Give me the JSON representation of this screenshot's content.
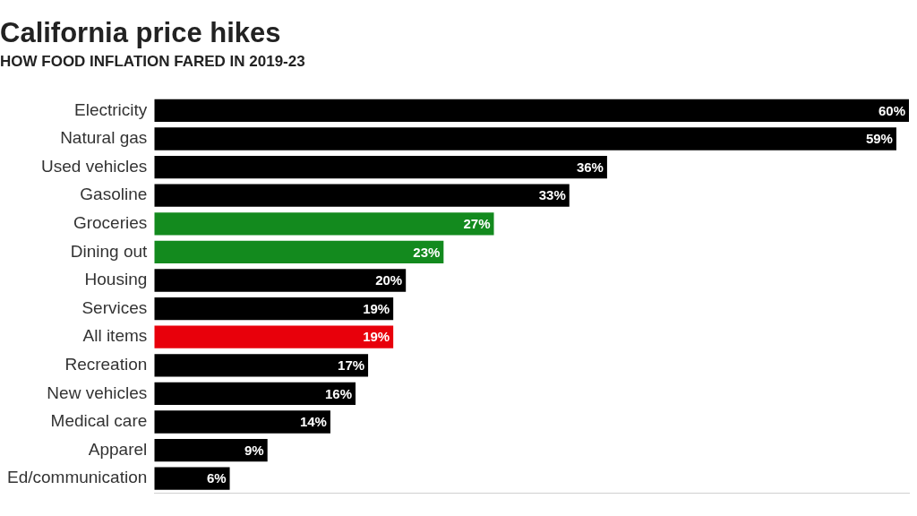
{
  "chart_data": {
    "type": "bar",
    "orientation": "horizontal",
    "title": "California price hikes",
    "subtitle": "HOW FOOD INFLATION FARED IN 2019-23",
    "categories": [
      "Electricity",
      "Natural gas",
      "Used vehicles",
      "Gasoline",
      "Groceries",
      "Dining out",
      "Housing",
      "Services",
      "All items",
      "Recreation",
      "New vehicles",
      "Medical care",
      "Apparel",
      "Ed/communication"
    ],
    "values": [
      60,
      59,
      36,
      33,
      27,
      23,
      20,
      19,
      19,
      17,
      16,
      14,
      9,
      6
    ],
    "value_labels": [
      "60%",
      "59%",
      "36%",
      "33%",
      "27%",
      "23%",
      "20%",
      "19%",
      "19%",
      "17%",
      "16%",
      "14%",
      "9%",
      "6%"
    ],
    "colors": [
      "#000000",
      "#000000",
      "#000000",
      "#000000",
      "#138a1e",
      "#138a1e",
      "#000000",
      "#000000",
      "#e8000b",
      "#000000",
      "#000000",
      "#000000",
      "#000000",
      "#000000"
    ],
    "xlim": [
      0,
      60
    ],
    "grid": false,
    "data_labels": true,
    "tick_labels": "y"
  }
}
